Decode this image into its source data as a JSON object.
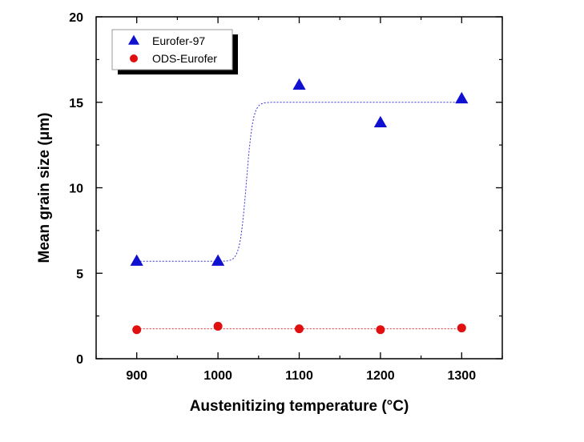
{
  "chart_data": {
    "type": "scatter",
    "title": "",
    "xlabel": "Austenitizing temperature (°C)",
    "ylabel": "Mean grain size (μm)",
    "xlim": [
      850,
      1350
    ],
    "ylim": [
      0,
      20
    ],
    "x_ticks": [
      900,
      1000,
      1100,
      1200,
      1300
    ],
    "y_ticks": [
      0,
      5,
      10,
      15,
      20
    ],
    "grid": false,
    "legend_position": "top-left",
    "series": [
      {
        "name": "Eurofer-97",
        "marker": "triangle",
        "color": "#1010d0",
        "x": [
          900,
          1000,
          1100,
          1200,
          1300
        ],
        "y": [
          5.7,
          5.7,
          16.0,
          13.8,
          15.2
        ],
        "fit": {
          "style": "dotted",
          "type": "sigmoid",
          "low": 5.7,
          "high": 15.0,
          "center": 1035,
          "x_range": [
            900,
            1300
          ]
        }
      },
      {
        "name": "ODS-Eurofer",
        "marker": "circle",
        "color": "#e01010",
        "x": [
          900,
          1000,
          1100,
          1200,
          1300
        ],
        "y": [
          1.7,
          1.9,
          1.75,
          1.7,
          1.8
        ],
        "fit": {
          "style": "dotted",
          "type": "constant",
          "value": 1.75,
          "x_range": [
            900,
            1300
          ]
        }
      }
    ]
  }
}
